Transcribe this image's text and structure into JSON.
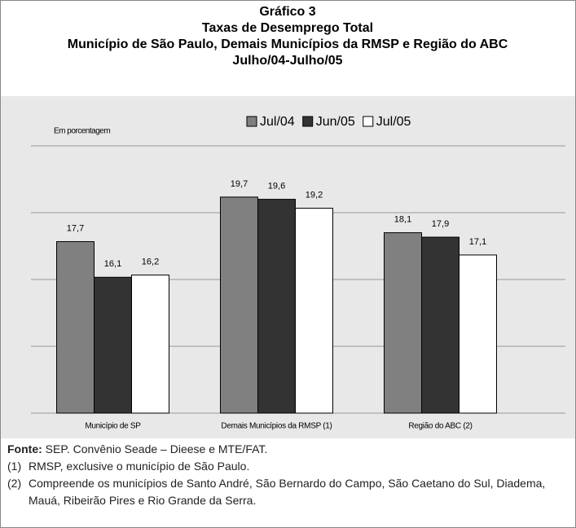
{
  "chart_data": {
    "type": "bar",
    "title": [
      "Gráfico 3",
      "Taxas de Desemprego Total",
      "Município de São Paulo, Demais Municípios da RMSP e Região do ABC",
      "Julho/04-Julho/05"
    ],
    "y_label": "Em porcentagem",
    "categories": [
      "Município de SP",
      "Demais Municípios da RMSP (1)",
      "Região do ABC (2)"
    ],
    "series": [
      {
        "name": "Jul/04",
        "color": "#808080",
        "values": [
          17.7,
          19.7,
          18.1
        ],
        "value_labels": [
          "17,7",
          "19,7",
          "18,1"
        ]
      },
      {
        "name": "Jun/05",
        "color": "#333333",
        "values": [
          16.1,
          19.6,
          17.9
        ],
        "value_labels": [
          "16,1",
          "19,6",
          "17,9"
        ]
      },
      {
        "name": "Jul/05",
        "color": "#ffffff",
        "values": [
          16.2,
          19.2,
          17.1
        ],
        "value_labels": [
          "16,2",
          "19,2",
          "17,1"
        ]
      }
    ],
    "ylim": [
      10,
      22
    ],
    "yticks": [
      10,
      13,
      16,
      19,
      22
    ],
    "tick_labels": false,
    "grid": true,
    "legend": "top"
  },
  "footer": {
    "source_label": "Fonte:",
    "source": "SEP. Convênio Seade – Dieese e MTE/FAT.",
    "notes": [
      {
        "marker": "(1)",
        "text": "RMSP, exclusive o município de São Paulo."
      },
      {
        "marker": "(2)",
        "text": "Compreende os municípios de Santo André, São Bernardo do Campo, São Caetano do Sul, Diadema, Mauá, Ribeirão Pires e Rio Grande da Serra."
      }
    ]
  }
}
